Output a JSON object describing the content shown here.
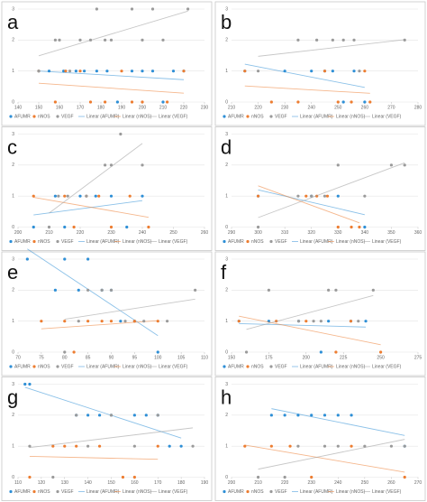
{
  "chart_data": [
    {
      "type": "scatter",
      "title": "a",
      "xlim": [
        140,
        230
      ],
      "xticks": [
        140,
        150,
        160,
        170,
        180,
        190,
        200,
        210,
        220,
        230
      ],
      "ylim": [
        0,
        3
      ],
      "yticks": [
        0,
        1,
        2,
        3
      ],
      "grid": true,
      "series": [
        {
          "name": "AFUMR",
          "trendline_name": "Linear (AFUMR)",
          "color": "#2e8fd6",
          "x": [
            150,
            155,
            162,
            168,
            172,
            178,
            183,
            188,
            195,
            200,
            205,
            210,
            215,
            220
          ],
          "values": [
            1,
            1,
            1,
            1,
            1,
            1,
            1,
            0,
            1,
            1,
            1,
            0,
            1,
            1
          ]
        },
        {
          "name": "nNOS",
          "trendline_name": "Linear (nNOS)",
          "color": "#ed7d31",
          "x": [
            150,
            158,
            163,
            170,
            175,
            182,
            190,
            195,
            200,
            212,
            220
          ],
          "values": [
            1,
            0,
            1,
            1,
            0,
            0,
            1,
            0,
            0,
            0,
            1
          ]
        },
        {
          "name": "VEGF",
          "trendline_name": "Linear (VEGF)",
          "color": "#9a9a9a",
          "x": [
            150,
            158,
            160,
            165,
            170,
            175,
            178,
            182,
            185,
            195,
            200,
            205,
            210,
            222
          ],
          "values": [
            1,
            2,
            2,
            1,
            2,
            2,
            3,
            2,
            2,
            3,
            2,
            3,
            2,
            3
          ]
        }
      ]
    },
    {
      "type": "scatter",
      "title": "b",
      "xlim": [
        210,
        280
      ],
      "xticks": [
        210,
        220,
        230,
        240,
        250,
        260,
        270,
        280
      ],
      "ylim": [
        0,
        3
      ],
      "yticks": [
        0,
        1,
        2,
        3
      ],
      "grid": true,
      "series": [
        {
          "name": "AFUMR",
          "trendline_name": "Linear (AFUMR)",
          "color": "#2e8fd6",
          "x": [
            215,
            230,
            240,
            245,
            248,
            252,
            256,
            260
          ],
          "values": [
            1,
            1,
            1,
            1,
            1,
            0,
            1,
            0
          ]
        },
        {
          "name": "nNOS",
          "trendline_name": "Linear (nNOS)",
          "color": "#ed7d31",
          "x": [
            215,
            225,
            235,
            245,
            250,
            255,
            260,
            262
          ],
          "values": [
            1,
            0,
            0,
            1,
            0,
            0,
            1,
            0
          ]
        },
        {
          "name": "VEGF",
          "trendline_name": "Linear (VEGF)",
          "color": "#9a9a9a",
          "x": [
            220,
            235,
            242,
            248,
            252,
            256,
            258,
            275
          ],
          "values": [
            1,
            2,
            2,
            2,
            2,
            2,
            1,
            2
          ]
        }
      ]
    },
    {
      "type": "scatter",
      "title": "c",
      "xlim": [
        200,
        260
      ],
      "xticks": [
        200,
        210,
        220,
        230,
        240,
        250,
        260
      ],
      "ylim": [
        0,
        3
      ],
      "yticks": [
        0,
        1,
        2,
        3
      ],
      "grid": true,
      "series": [
        {
          "name": "AFUMR",
          "trendline_name": "Linear (AFUMR)",
          "color": "#2e8fd6",
          "x": [
            205,
            212,
            215,
            220,
            225,
            230,
            235,
            240
          ],
          "values": [
            0,
            1,
            0,
            1,
            1,
            1,
            0,
            1
          ]
        },
        {
          "name": "nNOS",
          "trendline_name": "Linear (nNOS)",
          "color": "#ed7d31",
          "x": [
            205,
            215,
            218,
            222,
            226,
            230,
            236,
            242
          ],
          "values": [
            1,
            1,
            0,
            1,
            1,
            0,
            1,
            0
          ]
        },
        {
          "name": "VEGF",
          "trendline_name": "Linear (VEGF)",
          "color": "#9a9a9a",
          "x": [
            210,
            213,
            216,
            222,
            228,
            230,
            233,
            240
          ],
          "values": [
            0,
            1,
            1,
            1,
            2,
            2,
            3,
            2
          ]
        }
      ]
    },
    {
      "type": "scatter",
      "title": "d",
      "xlim": [
        290,
        360
      ],
      "xticks": [
        290,
        300,
        310,
        320,
        330,
        340,
        350,
        360
      ],
      "ylim": [
        0,
        3
      ],
      "yticks": [
        0,
        1,
        2,
        3
      ],
      "grid": true,
      "series": [
        {
          "name": "AFUMR",
          "trendline_name": "Linear (AFUMR)",
          "color": "#2e8fd6",
          "x": [
            300,
            320,
            330,
            340
          ],
          "values": [
            1,
            1,
            1,
            0
          ]
        },
        {
          "name": "nNOS",
          "trendline_name": "Linear (nNOS)",
          "color": "#ed7d31",
          "x": [
            300,
            318,
            322,
            326,
            330,
            335,
            338
          ],
          "values": [
            1,
            1,
            1,
            1,
            0,
            0,
            0
          ]
        },
        {
          "name": "VEGF",
          "trendline_name": "Linear (VEGF)",
          "color": "#9a9a9a",
          "x": [
            300,
            315,
            320,
            325,
            330,
            340,
            350,
            355
          ],
          "values": [
            0,
            1,
            1,
            1,
            2,
            1,
            2,
            2
          ]
        }
      ]
    },
    {
      "type": "scatter",
      "title": "e",
      "xlim": [
        70,
        110
      ],
      "xticks": [
        70,
        75,
        80,
        85,
        90,
        95,
        100,
        105,
        110
      ],
      "ylim": [
        0,
        3
      ],
      "yticks": [
        0,
        1,
        2,
        3
      ],
      "grid": true,
      "series": [
        {
          "name": "AFUMR",
          "trendline_name": "Linear (AFUMR)",
          "color": "#2e8fd6",
          "x": [
            72,
            78,
            80,
            83,
            85,
            88,
            90,
            92,
            95,
            100
          ],
          "values": [
            3,
            2,
            3,
            2,
            3,
            2,
            2,
            1,
            1,
            0
          ]
        },
        {
          "name": "nNOS",
          "trendline_name": "Linear (nNOS)",
          "color": "#ed7d31",
          "x": [
            75,
            80,
            82,
            85,
            88,
            90,
            95,
            100
          ],
          "values": [
            1,
            1,
            0,
            1,
            1,
            1,
            1,
            1
          ]
        },
        {
          "name": "VEGF",
          "trendline_name": "Linear (VEGF)",
          "color": "#9a9a9a",
          "x": [
            80,
            83,
            85,
            88,
            90,
            93,
            97,
            102,
            108
          ],
          "values": [
            0,
            1,
            2,
            2,
            2,
            1,
            1,
            1,
            2
          ]
        }
      ]
    },
    {
      "type": "scatter",
      "title": "f",
      "xlim": [
        150,
        275
      ],
      "xticks": [
        150,
        175,
        200,
        225,
        250,
        275
      ],
      "ylim": [
        0,
        3
      ],
      "yticks": [
        0,
        1,
        2,
        3
      ],
      "grid": true,
      "series": [
        {
          "name": "AFUMR",
          "trendline_name": "Linear (AFUMR)",
          "color": "#2e8fd6",
          "x": [
            155,
            175,
            195,
            210,
            215,
            230,
            240
          ],
          "values": [
            1,
            1,
            1,
            0,
            1,
            1,
            1
          ]
        },
        {
          "name": "nNOS",
          "trendline_name": "Linear (nNOS)",
          "color": "#ed7d31",
          "x": [
            155,
            180,
            200,
            220,
            230,
            250
          ],
          "values": [
            1,
            1,
            1,
            0,
            1,
            0
          ]
        },
        {
          "name": "VEGF",
          "trendline_name": "Linear (VEGF)",
          "color": "#9a9a9a",
          "x": [
            160,
            175,
            195,
            205,
            210,
            215,
            220,
            235,
            245
          ],
          "values": [
            0,
            2,
            1,
            1,
            1,
            2,
            2,
            1,
            2
          ]
        }
      ]
    },
    {
      "type": "scatter",
      "title": "g",
      "xlim": [
        110,
        190
      ],
      "xticks": [
        110,
        120,
        130,
        140,
        150,
        160,
        170,
        180,
        190
      ],
      "ylim": [
        0,
        3
      ],
      "yticks": [
        0,
        1,
        2,
        3
      ],
      "grid": true,
      "series": [
        {
          "name": "AFUMR",
          "trendline_name": "Linear (AFUMR)",
          "color": "#2e8fd6",
          "x": [
            113,
            115,
            135,
            140,
            145,
            150,
            160,
            165,
            170,
            175,
            180
          ],
          "values": [
            3,
            3,
            2,
            2,
            2,
            2,
            2,
            2,
            2,
            1,
            1
          ]
        },
        {
          "name": "nNOS",
          "trendline_name": "Linear (nNOS)",
          "color": "#ed7d31",
          "x": [
            115,
            125,
            130,
            135,
            145,
            155,
            160,
            170
          ],
          "values": [
            0,
            1,
            1,
            1,
            1,
            0,
            0,
            1
          ]
        },
        {
          "name": "VEGF",
          "trendline_name": "Linear (VEGF)",
          "color": "#9a9a9a",
          "x": [
            115,
            125,
            135,
            140,
            150,
            160,
            170,
            185
          ],
          "values": [
            1,
            0,
            2,
            1,
            2,
            1,
            2,
            1
          ]
        }
      ]
    },
    {
      "type": "scatter",
      "title": "h",
      "xlim": [
        200,
        270
      ],
      "xticks": [
        200,
        210,
        220,
        230,
        240,
        250,
        260,
        270
      ],
      "ylim": [
        0,
        3
      ],
      "yticks": [
        0,
        1,
        2,
        3
      ],
      "grid": true,
      "series": [
        {
          "name": "AFUMR",
          "trendline_name": "Linear (AFUMR)",
          "color": "#2e8fd6",
          "x": [
            215,
            220,
            225,
            230,
            235,
            240,
            245,
            265
          ],
          "values": [
            2,
            2,
            2,
            2,
            2,
            2,
            2,
            1
          ]
        },
        {
          "name": "nNOS",
          "trendline_name": "Linear (nNOS)",
          "color": "#ed7d31",
          "x": [
            205,
            215,
            222,
            230,
            245,
            265
          ],
          "values": [
            1,
            1,
            1,
            0,
            1,
            0
          ]
        },
        {
          "name": "VEGF",
          "trendline_name": "Linear (VEGF)",
          "color": "#9a9a9a",
          "x": [
            210,
            220,
            225,
            235,
            240,
            250,
            260,
            265
          ],
          "values": [
            0,
            0,
            1,
            1,
            1,
            1,
            1,
            1
          ]
        }
      ]
    }
  ]
}
